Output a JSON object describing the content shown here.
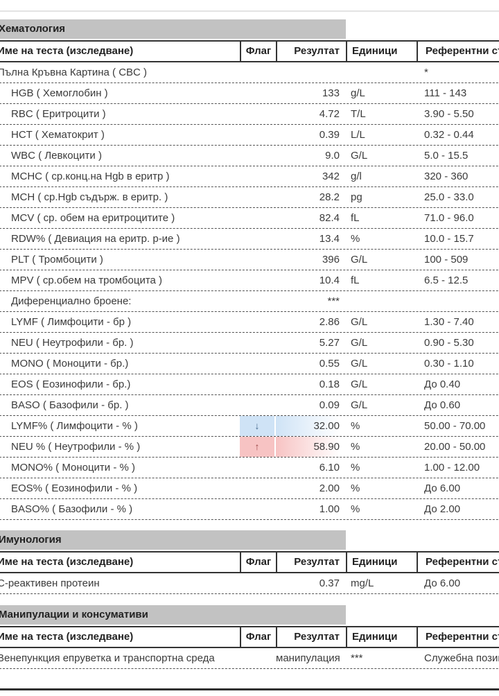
{
  "report": {
    "columns": {
      "name": "Име на теста (изследване)",
      "flag": "Флаг",
      "result": "Резултат",
      "units": "Единици",
      "reference": "Референтни стойности"
    },
    "flags": {
      "low": "↓",
      "high": "↑"
    },
    "colors": {
      "section_bar": "#c2c2c2",
      "low_bg": "#cfe3f6",
      "high_bg": "#f7c3c3",
      "low_arrow": "#44688c",
      "high_arrow": "#9c4848"
    },
    "sections": [
      {
        "title": "Хематология",
        "rows": [
          {
            "name": "Пълна Кръвна Картина ( CBC )",
            "indent": false,
            "flag": "",
            "result": "",
            "units": "",
            "reference": "*"
          },
          {
            "name": "HGB ( Хемоглобин )",
            "indent": true,
            "flag": "",
            "result": "133",
            "units": "g/L",
            "reference": "111 - 143"
          },
          {
            "name": "RBC ( Еритроцити )",
            "indent": true,
            "flag": "",
            "result": "4.72",
            "units": "T/L",
            "reference": "3.90 - 5.50"
          },
          {
            "name": "HCT ( Хематокрит )",
            "indent": true,
            "flag": "",
            "result": "0.39",
            "units": "L/L",
            "reference": "0.32 - 0.44"
          },
          {
            "name": "WBC ( Левкоцити )",
            "indent": true,
            "flag": "",
            "result": "9.0",
            "units": "G/L",
            "reference": "5.0 - 15.5"
          },
          {
            "name": "MCHC ( ср.конц.на Hgb в еритр )",
            "indent": true,
            "flag": "",
            "result": "342",
            "units": "g/l",
            "reference": "320 - 360"
          },
          {
            "name": "MCH ( ср.Hgb съдърж. в еритр. )",
            "indent": true,
            "flag": "",
            "result": "28.2",
            "units": "pg",
            "reference": "25.0 - 33.0"
          },
          {
            "name": "MCV ( ср. обем на еритроцитите )",
            "indent": true,
            "flag": "",
            "result": "82.4",
            "units": "fL",
            "reference": "71.0 - 96.0"
          },
          {
            "name": "RDW% ( Девиация на еритр. р-ие )",
            "indent": true,
            "flag": "",
            "result": "13.4",
            "units": "%",
            "reference": "10.0 - 15.7"
          },
          {
            "name": "PLT ( Тромбоцити )",
            "indent": true,
            "flag": "",
            "result": "396",
            "units": "G/L",
            "reference": "100 - 509"
          },
          {
            "name": "MPV ( ср.обем на тромбоцита )",
            "indent": true,
            "flag": "",
            "result": "10.4",
            "units": "fL",
            "reference": "6.5 - 12.5"
          },
          {
            "name": "Диференциално броене:",
            "indent": true,
            "flag": "",
            "result": "***",
            "units": "",
            "reference": ""
          },
          {
            "name": "LYMF ( Лимфоцити - бр )",
            "indent": true,
            "flag": "",
            "result": "2.86",
            "units": "G/L",
            "reference": "1.30 - 7.40"
          },
          {
            "name": "NEU ( Неутрофили - бр. )",
            "indent": true,
            "flag": "",
            "result": "5.27",
            "units": "G/L",
            "reference": "0.90 - 5.30"
          },
          {
            "name": "MONO ( Моноцити - бр.)",
            "indent": true,
            "flag": "",
            "result": "0.55",
            "units": "G/L",
            "reference": "0.30 - 1.10"
          },
          {
            "name": "EOS ( Еозинофили - бр.)",
            "indent": true,
            "flag": "",
            "result": "0.18",
            "units": "G/L",
            "reference": "До 0.40"
          },
          {
            "name": "BASO ( Базофили - бр. )",
            "indent": true,
            "flag": "",
            "result": "0.09",
            "units": "G/L",
            "reference": "До 0.60"
          },
          {
            "name": "LYMF% ( Лимфоцити - % )",
            "indent": true,
            "flag": "low",
            "result": "32.00",
            "units": "%",
            "reference": "50.00 - 70.00"
          },
          {
            "name": "NEU % ( Неутрофили - % )",
            "indent": true,
            "flag": "high",
            "result": "58.90",
            "units": "%",
            "reference": "20.00 - 50.00"
          },
          {
            "name": "MONO% ( Моноцити - % )",
            "indent": true,
            "flag": "",
            "result": "6.10",
            "units": "%",
            "reference": "1.00 - 12.00"
          },
          {
            "name": "EOS% ( Еозинофили - % )",
            "indent": true,
            "flag": "",
            "result": "2.00",
            "units": "%",
            "reference": "До 6.00"
          },
          {
            "name": "BASO% ( Базофили - % )",
            "indent": true,
            "flag": "",
            "result": "1.00",
            "units": "%",
            "reference": "До 2.00"
          }
        ]
      },
      {
        "title": "Имунология",
        "rows": [
          {
            "name": "C-реактивен протеин",
            "indent": false,
            "flag": "",
            "result": "0.37",
            "units": "mg/L",
            "reference": "До 6.00"
          }
        ]
      },
      {
        "title": "Манипулации и консумативи",
        "rows": [
          {
            "name": "Венепункция епруветка и транспортна среда",
            "indent": false,
            "flag": "",
            "result": "манипулация",
            "units": "***",
            "reference": "Служебна позиция"
          }
        ]
      }
    ]
  }
}
